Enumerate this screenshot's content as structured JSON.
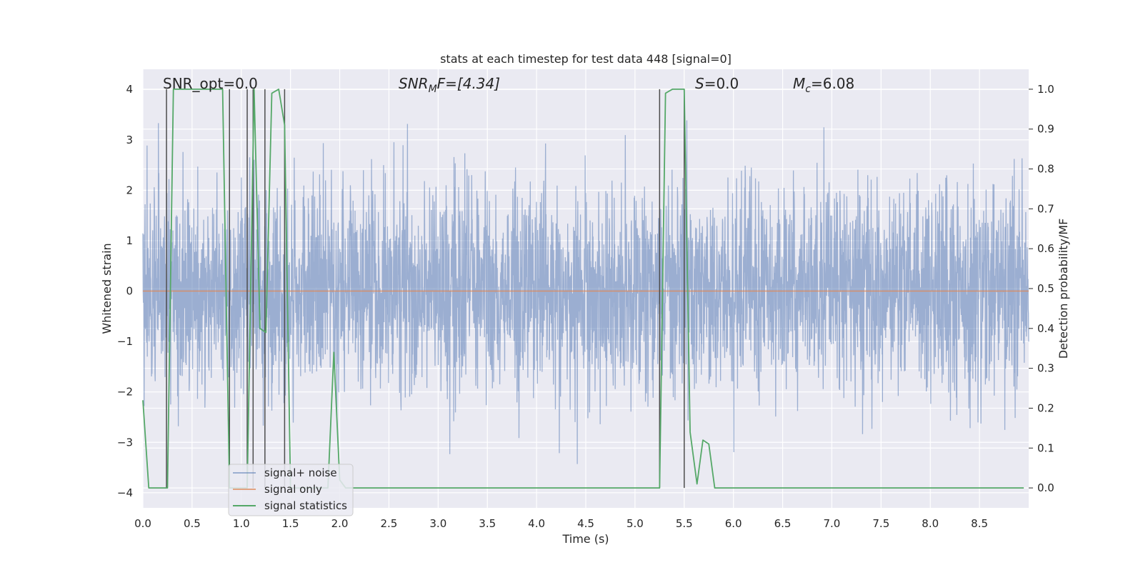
{
  "chart_data": {
    "type": "line",
    "title": "stats at each timestep for test data 448 [signal=0]",
    "xlabel": "Time (s)",
    "ylabel_left": "Whitened strain",
    "ylabel_right": "Detection probability/MF",
    "xlim": [
      0.0,
      9.0
    ],
    "ylim_left": [
      -4.3,
      4.4
    ],
    "ylim_right": [
      -0.05,
      1.05
    ],
    "x_ticks": [
      0.0,
      0.5,
      1.0,
      1.5,
      2.0,
      2.5,
      3.0,
      3.5,
      4.0,
      4.5,
      5.0,
      5.5,
      6.0,
      6.5,
      7.0,
      7.5,
      8.0,
      8.5
    ],
    "x_tick_labels": [
      "0.0",
      "0.5",
      "1.0",
      "1.5",
      "2.0",
      "2.5",
      "3.0",
      "3.5",
      "4.0",
      "4.5",
      "5.0",
      "5.5",
      "6.0",
      "6.5",
      "7.0",
      "7.5",
      "8.0",
      "8.5"
    ],
    "y_left_ticks": [
      4,
      3,
      2,
      1,
      0,
      -1,
      -2,
      -3,
      -4
    ],
    "y_left_tick_labels": [
      "4",
      "3",
      "2",
      "1",
      "0",
      "−1",
      "−2",
      "−3",
      "−4"
    ],
    "y_right_ticks": [
      1.0,
      0.9,
      0.8,
      0.7,
      0.6,
      0.5,
      0.4,
      0.3,
      0.2,
      0.1,
      0.0
    ],
    "y_right_tick_labels": [
      "1.0",
      "0.9",
      "0.8",
      "0.7",
      "0.6",
      "0.5",
      "0.4",
      "0.3",
      "0.2",
      "0.1",
      "0.0"
    ],
    "grid": true,
    "legend_position": "bottom-left",
    "annotations": [
      {
        "text": "SNR_opt=0.0",
        "x": 0.2
      },
      {
        "text_main": "SNR",
        "text_sub": "M",
        "text_rest": "F=[4.34]",
        "x": 2.6
      },
      {
        "text_main": "S",
        "text_sub": "",
        "text_rest": "=0.0",
        "x": 5.6
      },
      {
        "text_main": "M",
        "text_sub": "c",
        "text_rest": "=6.08",
        "x": 6.6
      }
    ],
    "series": [
      {
        "name": "signal+ noise",
        "color": "#4c72b0",
        "axis": "left",
        "kind": "noise",
        "sigma": 1.0,
        "seed": 448
      },
      {
        "name": "signal only",
        "color": "#dd8452",
        "axis": "left",
        "x": [
          0.0,
          9.0
        ],
        "y": [
          0.0,
          0.0
        ]
      },
      {
        "name": "signal statistics",
        "color": "#55a868",
        "axis": "right",
        "x": [
          0.0,
          0.06,
          0.13,
          0.19,
          0.25,
          0.31,
          0.38,
          0.44,
          0.5,
          0.56,
          0.63,
          0.69,
          0.75,
          0.81,
          0.88,
          0.94,
          1.0,
          1.06,
          1.13,
          1.19,
          1.25,
          1.31,
          1.38,
          1.44,
          1.5,
          1.56,
          1.63,
          1.69,
          1.75,
          1.81,
          1.88,
          1.94,
          2.0,
          2.06,
          2.13,
          2.19,
          2.25,
          2.5,
          3.0,
          3.5,
          4.0,
          4.5,
          5.0,
          5.25,
          5.31,
          5.38,
          5.44,
          5.5,
          5.56,
          5.63,
          5.69,
          5.75,
          5.81,
          5.88,
          6.0,
          6.5,
          7.0,
          7.5,
          8.0,
          8.5,
          8.95
        ],
        "y": [
          0.22,
          0.0,
          0.0,
          0.0,
          0.0,
          1.0,
          1.0,
          1.0,
          1.0,
          1.0,
          1.0,
          1.0,
          1.0,
          1.0,
          0.0,
          0.0,
          0.0,
          0.0,
          1.0,
          0.4,
          0.39,
          0.99,
          1.0,
          0.91,
          0.0,
          0.0,
          0.0,
          0.0,
          0.0,
          0.0,
          0.0,
          0.34,
          0.02,
          0.0,
          0.0,
          0.0,
          0.0,
          0.0,
          0.0,
          0.0,
          0.0,
          0.0,
          0.0,
          0.0,
          0.99,
          1.0,
          1.0,
          1.0,
          0.14,
          0.01,
          0.12,
          0.11,
          0.0,
          0.0,
          0.0,
          0.0,
          0.0,
          0.0,
          0.0,
          0.0,
          0.0
        ]
      }
    ],
    "vertical_lines": {
      "color": "#4d4d4d",
      "x": [
        0.24,
        0.88,
        1.06,
        1.12,
        1.24,
        1.44,
        5.25,
        5.5
      ],
      "y_ranges_right": [
        [
          0.0,
          1.0
        ],
        [
          0.0,
          1.0
        ],
        [
          0.0,
          1.0
        ],
        [
          0.0,
          1.0
        ],
        [
          0.0,
          1.0
        ],
        [
          0.0,
          1.0
        ],
        [
          0.0,
          1.0
        ],
        [
          0.0,
          1.0
        ]
      ]
    }
  }
}
